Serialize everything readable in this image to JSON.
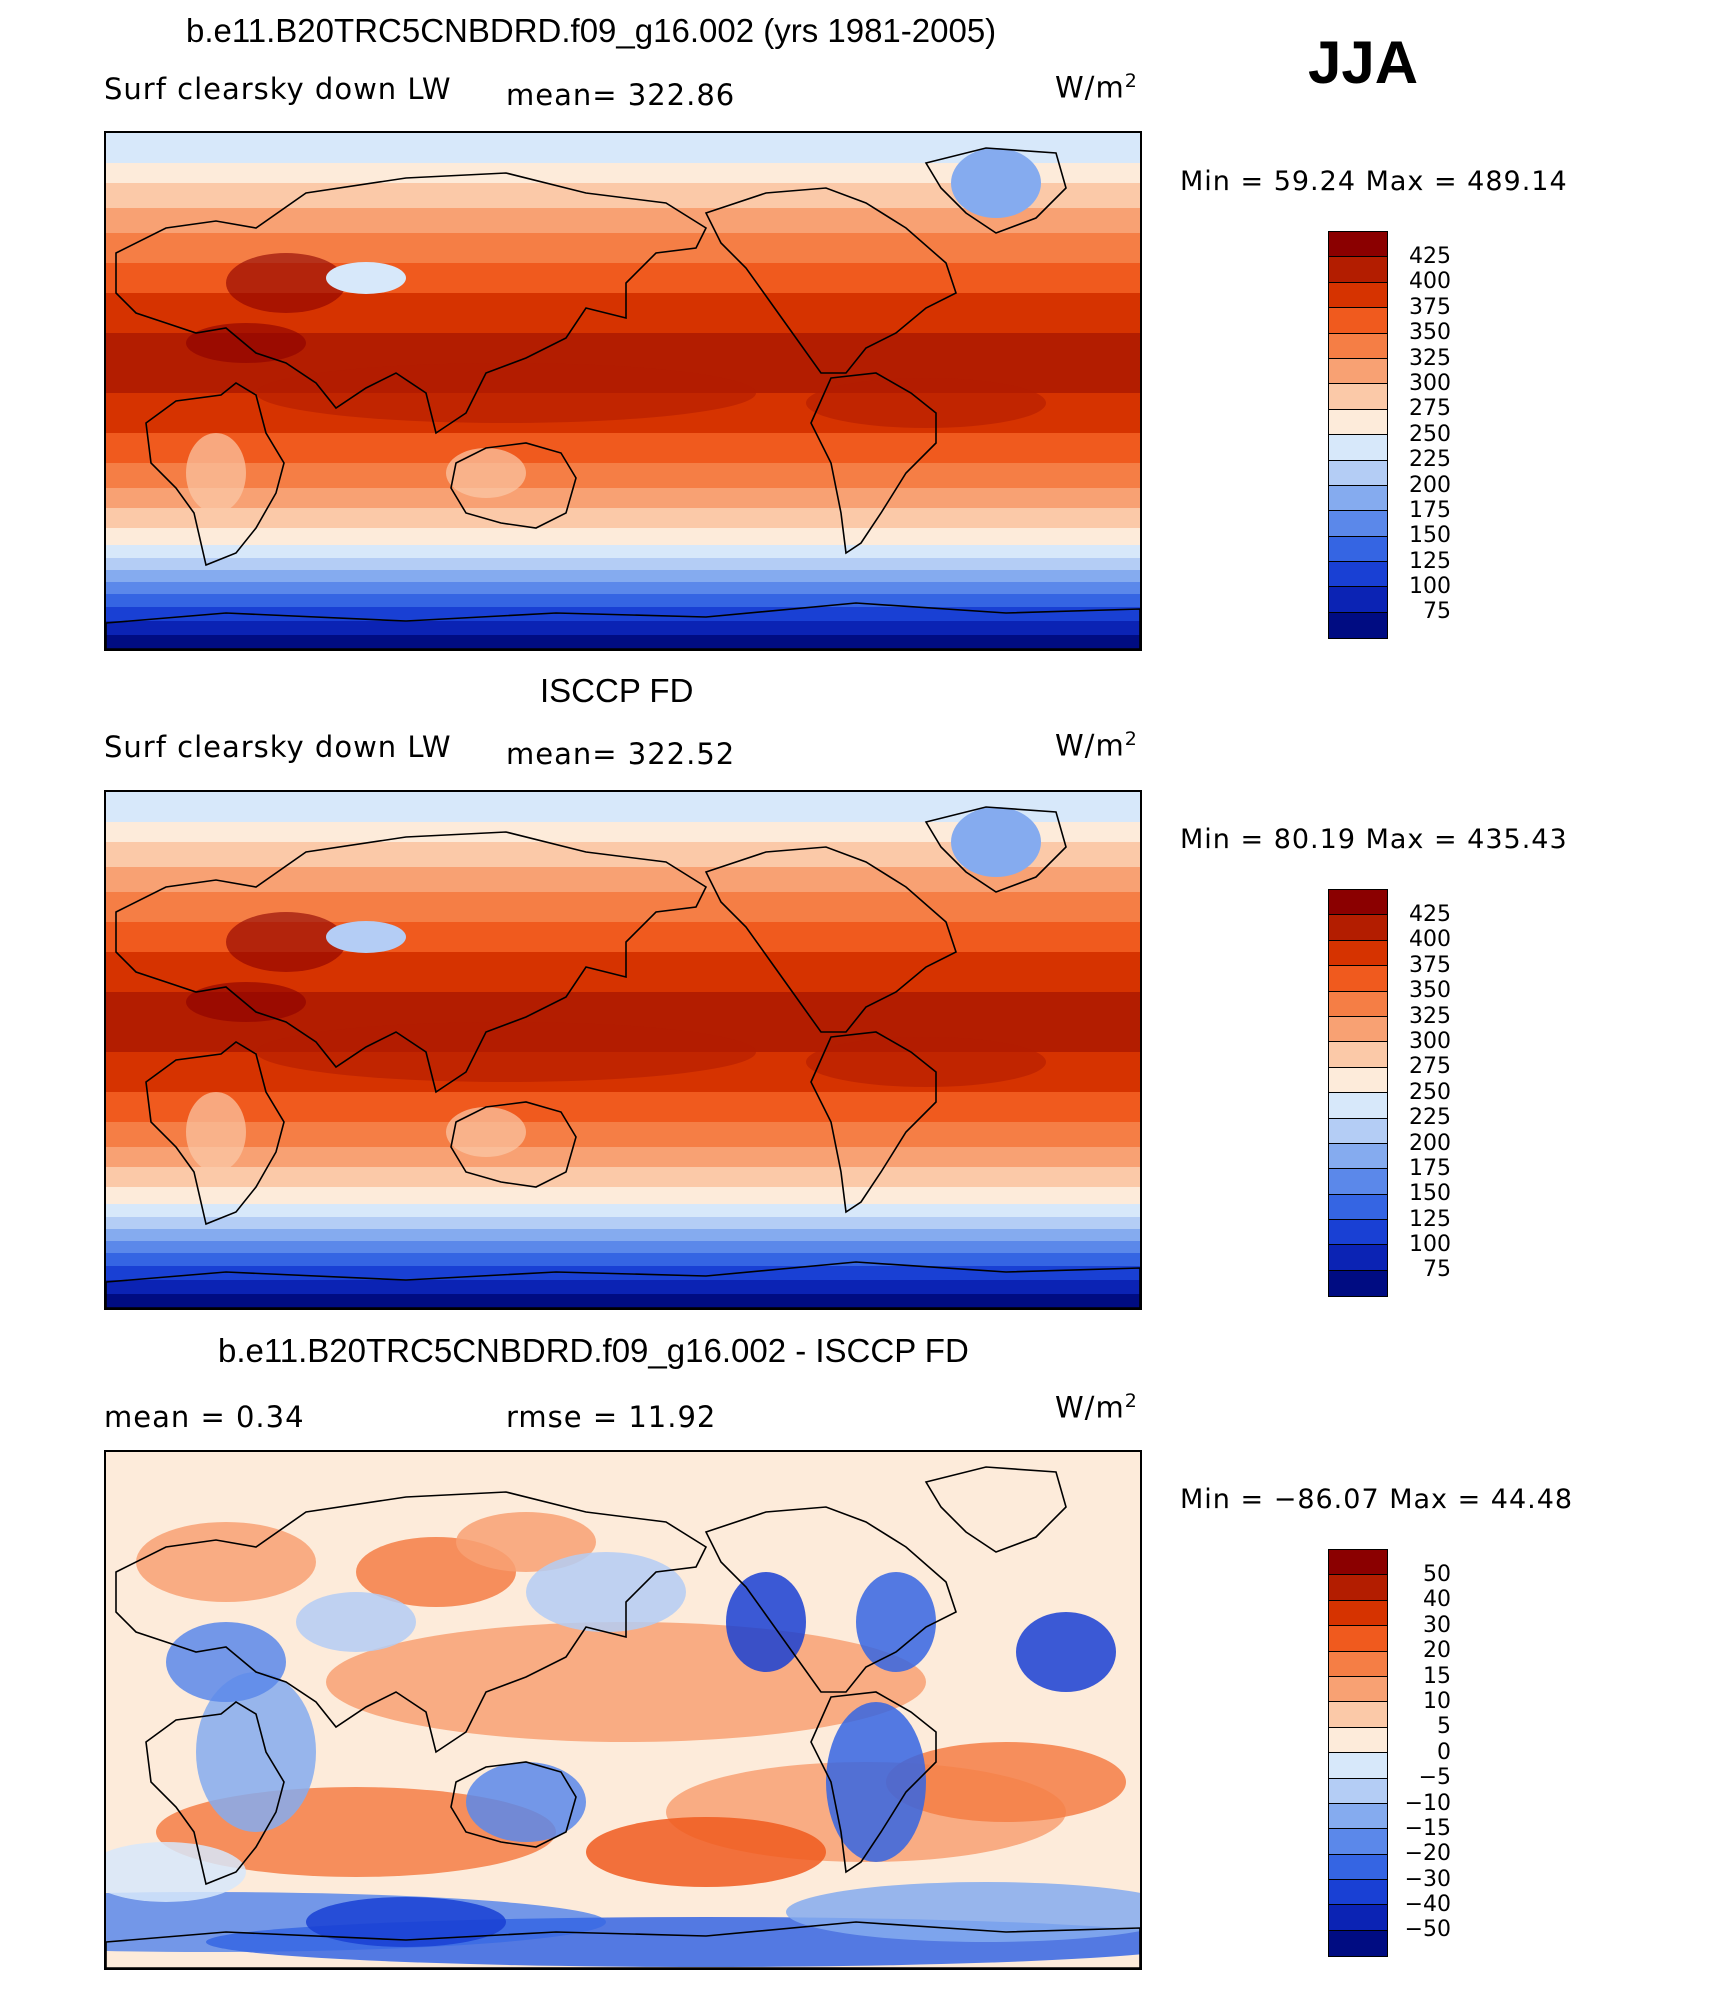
{
  "season": "JJA",
  "panels": [
    {
      "title": "b.e11.B20TRC5CNBDRD.f09_g16.002 (yrs 1981-2005)",
      "variable": "Surf clearsky down LW",
      "stat": "mean=  322.86",
      "units": "W/m",
      "units_exp": "2",
      "minmax": "Min =   59.24  Max  =  489.14",
      "palette": "absolute",
      "levels": [
        "425",
        "400",
        "375",
        "350",
        "325",
        "300",
        "275",
        "250",
        "225",
        "200",
        "175",
        "150",
        "125",
        "100",
        "75"
      ]
    },
    {
      "title": "ISCCP FD",
      "variable": "Surf clearsky down LW",
      "stat": "mean=  322.52",
      "units": "W/m",
      "units_exp": "2",
      "minmax": "Min =   80.19  Max  =  435.43",
      "palette": "absolute",
      "levels": [
        "425",
        "400",
        "375",
        "350",
        "325",
        "300",
        "275",
        "250",
        "225",
        "200",
        "175",
        "150",
        "125",
        "100",
        "75"
      ]
    },
    {
      "title": "b.e11.B20TRC5CNBDRD.f09_g16.002 - ISCCP FD",
      "variable": "mean =      0.34",
      "stat": "rmse  =    11.92",
      "units": "W/m",
      "units_exp": "2",
      "minmax": "Min  =  −86.07  Max  =     44.48",
      "palette": "difference",
      "levels": [
        "50",
        "40",
        "30",
        "20",
        "15",
        "10",
        "5",
        "0",
        "−5",
        "−10",
        "−15",
        "−20",
        "−30",
        "−40",
        "−50"
      ]
    }
  ],
  "colors": {
    "absolute": [
      "#8b0000",
      "#b31d00",
      "#d63300",
      "#f05a1e",
      "#f57e45",
      "#f8a173",
      "#fbc9a8",
      "#fdebda",
      "#d7e8fa",
      "#b4cdf5",
      "#85abef",
      "#5b88ea",
      "#3565e3",
      "#1940d4",
      "#0b23b4",
      "#000c82"
    ],
    "difference": [
      "#8b0000",
      "#b31d00",
      "#d63300",
      "#f05a1e",
      "#f57e45",
      "#f8a173",
      "#fbc9a8",
      "#fdebda",
      "#d7e8fa",
      "#b4cdf5",
      "#85abef",
      "#5b88ea",
      "#3565e3",
      "#1940d4",
      "#0b23b4",
      "#000c82"
    ]
  }
}
